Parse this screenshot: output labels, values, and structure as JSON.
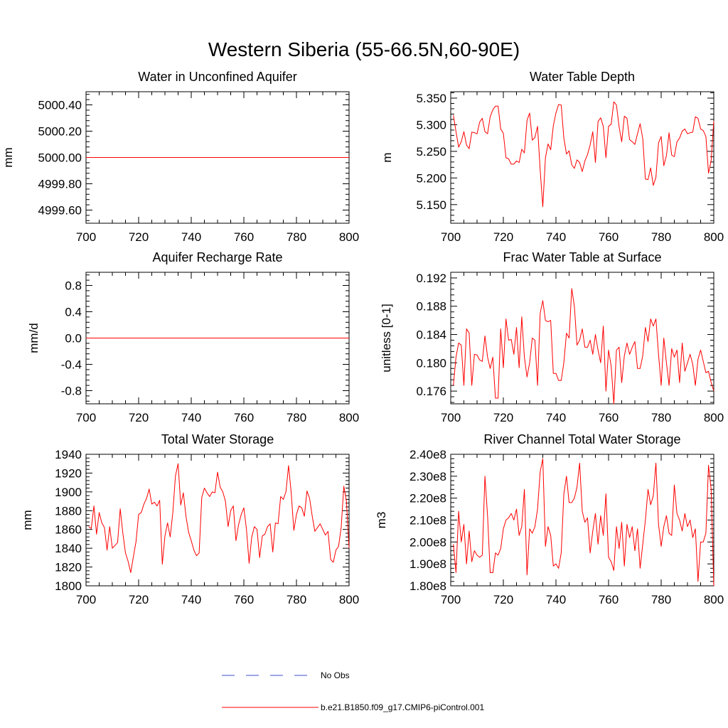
{
  "figure_title": "Western Siberia (55-66.5N,60-90E)",
  "colors": {
    "model_line": "#ff0000",
    "obs_line": "#3c50c8",
    "frame": "#000000"
  },
  "legend": [
    {
      "label": "No Obs",
      "style": "dashed",
      "color": "#3c50c8"
    },
    {
      "label": "b.e21.B1850.f09_g17.CMIP6-piControl.001",
      "style": "solid",
      "color": "#ff0000"
    }
  ],
  "chart_data": [
    {
      "type": "line",
      "title": "Water in Unconfined Aquifer",
      "xlabel": "",
      "ylabel": "mm",
      "xlim": [
        700,
        800
      ],
      "xticks": [
        700,
        720,
        740,
        760,
        780,
        800
      ],
      "xticklabels": [
        "700",
        "720",
        "740",
        "760",
        "780",
        "800"
      ],
      "ylim": [
        4999.5,
        5000.5
      ],
      "yticks": [
        4999.6,
        4999.8,
        5000.0,
        5000.2,
        5000.4
      ],
      "yticklabels": [
        "4999.60",
        "4999.80",
        "5000.00",
        "5000.20",
        "5000.40"
      ],
      "ytickdigits": 2,
      "series": [
        {
          "name": "b.e21.B1850.f09_g17.CMIP6-piControl.001",
          "x_start": 700,
          "x_step": 100,
          "values": [
            5000.0,
            5000.0
          ]
        }
      ]
    },
    {
      "type": "line",
      "title": "Water Table Depth",
      "xlabel": "",
      "ylabel": "m",
      "xlim": [
        700,
        800
      ],
      "xticks": [
        700,
        720,
        740,
        760,
        780,
        800
      ],
      "xticklabels": [
        "700",
        "720",
        "740",
        "760",
        "780",
        "800"
      ],
      "ylim": [
        5.115,
        5.362
      ],
      "yticks": [
        5.15,
        5.2,
        5.25,
        5.3,
        5.35
      ],
      "yticklabels": [
        "5.150",
        "5.200",
        "5.250",
        "5.300",
        "5.350"
      ],
      "ytickdigits": 3,
      "series": [
        {
          "name": "b.e21.B1850.f09_g17.CMIP6-piControl.001",
          "x_start": 701,
          "x_step": 1,
          "values": [
            5.318,
            5.287,
            5.258,
            5.268,
            5.287,
            5.262,
            5.255,
            5.286,
            5.285,
            5.283,
            5.305,
            5.312,
            5.287,
            5.283,
            5.315,
            5.328,
            5.335,
            5.335,
            5.292,
            5.284,
            5.238,
            5.236,
            5.226,
            5.226,
            5.232,
            5.229,
            5.254,
            5.247,
            5.308,
            5.322,
            5.271,
            5.276,
            5.297,
            5.215,
            5.146,
            5.238,
            5.264,
            5.253,
            5.298,
            5.322,
            5.338,
            5.337,
            5.275,
            5.245,
            5.251,
            5.225,
            5.218,
            5.234,
            5.229,
            5.212,
            5.232,
            5.244,
            5.262,
            5.287,
            5.229,
            5.306,
            5.313,
            5.297,
            5.238,
            5.297,
            5.301,
            5.343,
            5.337,
            5.296,
            5.268,
            5.316,
            5.312,
            5.272,
            5.268,
            5.263,
            5.283,
            5.302,
            5.274,
            5.198,
            5.197,
            5.219,
            5.186,
            5.201,
            5.266,
            5.278,
            5.223,
            5.242,
            5.285,
            5.243,
            5.24,
            5.268,
            5.275,
            5.288,
            5.292,
            5.283,
            5.285,
            5.286,
            5.315,
            5.312,
            5.292,
            5.289,
            5.278,
            5.209,
            5.233,
            5.307
          ]
        }
      ]
    },
    {
      "type": "line",
      "title": "Aquifer Recharge Rate",
      "xlabel": "",
      "ylabel": "mm/d",
      "xlim": [
        700,
        800
      ],
      "xticks": [
        700,
        720,
        740,
        760,
        780,
        800
      ],
      "xticklabels": [
        "700",
        "720",
        "740",
        "760",
        "780",
        "800"
      ],
      "ylim": [
        -1,
        1
      ],
      "yticks": [
        -0.8,
        -0.4,
        0.0,
        0.4,
        0.8
      ],
      "yticklabels": [
        "-0.8",
        "-0.4",
        "0.0",
        "0.4",
        "0.8"
      ],
      "ytickdigits": 1,
      "series": [
        {
          "name": "b.e21.B1850.f09_g17.CMIP6-piControl.001",
          "x_start": 700,
          "x_step": 100,
          "values": [
            0.0,
            0.0
          ]
        }
      ]
    },
    {
      "type": "line",
      "title": "Frac Water Table at Surface",
      "xlabel": "",
      "ylabel": "unitless [0-1]",
      "xlim": [
        700,
        800
      ],
      "xticks": [
        700,
        720,
        740,
        760,
        780,
        800
      ],
      "xticklabels": [
        "700",
        "720",
        "740",
        "760",
        "780",
        "800"
      ],
      "ylim": [
        0.1742,
        0.1928
      ],
      "yticks": [
        0.176,
        0.18,
        0.184,
        0.188,
        0.192
      ],
      "yticklabels": [
        "0.176",
        "0.180",
        "0.184",
        "0.188",
        "0.192"
      ],
      "ytickdigits": 3,
      "series": [
        {
          "name": "b.e21.B1850.f09_g17.CMIP6-piControl.001",
          "x_start": 701,
          "x_step": 1,
          "values": [
            0.1768,
            0.1808,
            0.1828,
            0.1825,
            0.1768,
            0.1848,
            0.1842,
            0.1768,
            0.1812,
            0.1811,
            0.1804,
            0.1802,
            0.1838,
            0.1808,
            0.1792,
            0.1808,
            0.175,
            0.175,
            0.1848,
            0.1793,
            0.1862,
            0.1832,
            0.1833,
            0.1812,
            0.185,
            0.1793,
            0.1865,
            0.1808,
            0.178,
            0.18,
            0.1835,
            0.1832,
            0.1768,
            0.187,
            0.1888,
            0.186,
            0.1858,
            0.186,
            0.1785,
            0.1785,
            0.1775,
            0.1775,
            0.18,
            0.1842,
            0.1835,
            0.1905,
            0.188,
            0.1825,
            0.1832,
            0.1848,
            0.1822,
            0.1822,
            0.1832,
            0.1812,
            0.184,
            0.1818,
            0.18,
            0.1852,
            0.176,
            0.1818,
            0.1795,
            0.1742,
            0.1818,
            0.1822,
            0.1772,
            0.181,
            0.1828,
            0.1812,
            0.1822,
            0.183,
            0.1792,
            0.1792,
            0.181,
            0.185,
            0.183,
            0.1862,
            0.1852,
            0.1862,
            0.1812,
            0.1768,
            0.1835,
            0.18,
            0.1768,
            0.182,
            0.1808,
            0.1818,
            0.1772,
            0.1828,
            0.1788,
            0.18,
            0.1812,
            0.1798,
            0.1768,
            0.1805,
            0.1818,
            0.1802,
            0.1786,
            0.1788,
            0.1772,
            0.176
          ]
        }
      ]
    },
    {
      "type": "line",
      "title": "Total Water Storage",
      "xlabel": "",
      "ylabel": "mm",
      "xlim": [
        700,
        800
      ],
      "xticks": [
        700,
        720,
        740,
        760,
        780,
        800
      ],
      "xticklabels": [
        "700",
        "720",
        "740",
        "760",
        "780",
        "800"
      ],
      "ylim": [
        1800,
        1940
      ],
      "yticks": [
        1800,
        1820,
        1840,
        1860,
        1880,
        1900,
        1920,
        1940
      ],
      "yticklabels": [
        "1800",
        "1820",
        "1840",
        "1860",
        "1880",
        "1900",
        "1920",
        "1940"
      ],
      "ytickdigits": 0,
      "series": [
        {
          "name": "b.e21.B1850.f09_g17.CMIP6-piControl.001",
          "x_start": 701,
          "x_step": 1,
          "values": [
            1863,
            1861,
            1885,
            1855,
            1878,
            1867,
            1862,
            1838,
            1863,
            1840,
            1843,
            1846,
            1882,
            1856,
            1835,
            1826,
            1814,
            1831,
            1847,
            1876,
            1878,
            1887,
            1893,
            1903,
            1887,
            1889,
            1885,
            1891,
            1823,
            1853,
            1867,
            1852,
            1878,
            1917,
            1930,
            1886,
            1899,
            1874,
            1857,
            1848,
            1838,
            1832,
            1835,
            1894,
            1904,
            1899,
            1895,
            1900,
            1899,
            1921,
            1905,
            1900,
            1890,
            1863,
            1880,
            1885,
            1848,
            1865,
            1876,
            1883,
            1860,
            1824,
            1852,
            1863,
            1860,
            1830,
            1853,
            1855,
            1863,
            1866,
            1836,
            1867,
            1866,
            1895,
            1892,
            1900,
            1928,
            1899,
            1859,
            1876,
            1885,
            1883,
            1874,
            1901,
            1893,
            1874,
            1858,
            1862,
            1866,
            1860,
            1854,
            1858,
            1828,
            1825,
            1838,
            1842,
            1862,
            1906,
            1890,
            1840
          ]
        }
      ]
    },
    {
      "type": "line",
      "title": "River Channel Total Water Storage",
      "xlabel": "",
      "ylabel": "m3",
      "xlim": [
        700,
        800
      ],
      "xticks": [
        700,
        720,
        740,
        760,
        780,
        800
      ],
      "xticklabels": [
        "700",
        "720",
        "740",
        "760",
        "780",
        "800"
      ],
      "ylim": [
        180000000.0,
        240000000.0
      ],
      "yticks": [
        180000000.0,
        190000000.0,
        200000000.0,
        210000000.0,
        220000000.0,
        230000000.0,
        240000000.0
      ],
      "yticklabels": [
        "1.80e8",
        "1.90e8",
        "2.00e8",
        "2.10e8",
        "2.20e8",
        "2.30e8",
        "2.40e8"
      ],
      "ytickdigits": 2,
      "series": [
        {
          "name": "b.e21.B1850.f09_g17.CMIP6-piControl.001",
          "x_start": 701,
          "x_step": 1,
          "values": [
            199000000.0,
            186000000.0,
            214000000.0,
            200000000.0,
            208000000.0,
            190000000.0,
            205000000.0,
            191000000.0,
            196000000.0,
            194000000.0,
            193000000.0,
            194000000.0,
            230000000.0,
            212000000.0,
            186000000.0,
            186000000.0,
            195000000.0,
            194000000.0,
            197000000.0,
            206000000.0,
            210000000.0,
            211000000.0,
            213000000.0,
            210000000.0,
            215000000.0,
            203000000.0,
            207000000.0,
            224000000.0,
            185000000.0,
            206000000.0,
            204000000.0,
            207000000.0,
            215000000.0,
            232000000.0,
            238000000.0,
            198000000.0,
            207000000.0,
            203000000.0,
            189000000.0,
            190000000.0,
            188000000.0,
            195000000.0,
            222000000.0,
            230000000.0,
            218000000.0,
            218000000.0,
            220000000.0,
            225000000.0,
            236000000.0,
            214000000.0,
            209000000.0,
            211000000.0,
            195000000.0,
            205000000.0,
            213000000.0,
            199000000.0,
            212000000.0,
            203000000.0,
            222000000.0,
            193000000.0,
            191000000.0,
            187000000.0,
            207000000.0,
            197000000.0,
            209000000.0,
            189000000.0,
            208000000.0,
            202000000.0,
            207000000.0,
            196000000.0,
            206000000.0,
            188000000.0,
            199000000.0,
            210000000.0,
            224000000.0,
            217000000.0,
            221000000.0,
            236000000.0,
            208000000.0,
            198000000.0,
            207000000.0,
            212000000.0,
            204000000.0,
            203000000.0,
            226000000.0,
            213000000.0,
            210000000.0,
            205000000.0,
            213000000.0,
            207000000.0,
            210000000.0,
            202000000.0,
            206000000.0,
            182000000.0,
            200000000.0,
            200000000.0,
            204000000.0,
            235000000.0,
            224000000.0,
            180000000.0
          ]
        }
      ]
    }
  ]
}
